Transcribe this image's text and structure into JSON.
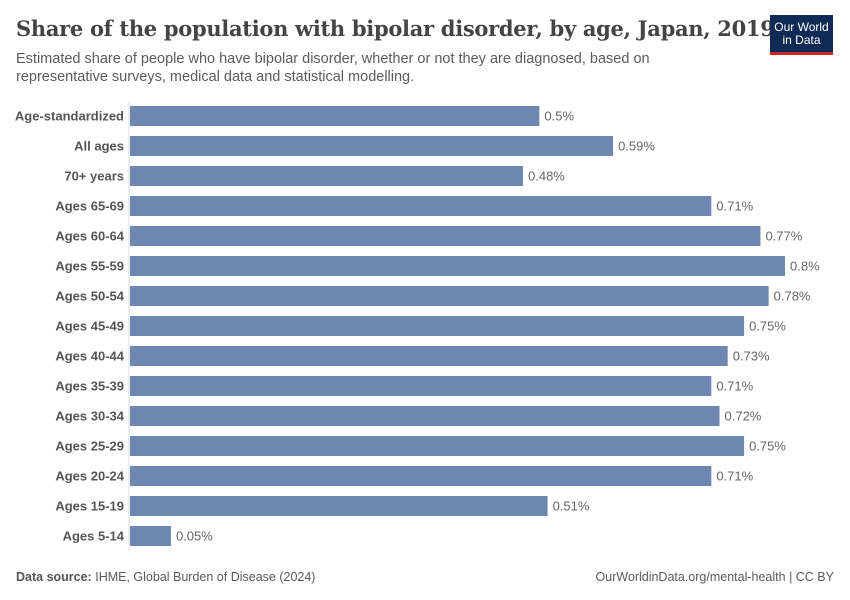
{
  "header": {
    "title": "Share of the population with bipolar disorder, by age, Japan, 2019",
    "subtitle": "Estimated share of people who have bipolar disorder, whether or not they are diagnosed, based on representative surveys, medical data and statistical modelling.",
    "logo": "Our World in Data",
    "logo_line1": "Our World",
    "logo_line2": "in Data"
  },
  "footer": {
    "source_label": "Data source:",
    "source": "IHME, Global Burden of Disease (2024)",
    "url": "OurWorldinData.org/mental-health | CC BY"
  },
  "chart_data": {
    "type": "bar",
    "orientation": "horizontal",
    "bar_color": "#6d87b1",
    "categories": [
      "Age-standardized",
      "All ages",
      "70+ years",
      "Ages 65-69",
      "Ages 60-64",
      "Ages 55-59",
      "Ages 50-54",
      "Ages 45-49",
      "Ages 40-44",
      "Ages 35-39",
      "Ages 30-34",
      "Ages 25-29",
      "Ages 20-24",
      "Ages 15-19",
      "Ages 5-14"
    ],
    "values": [
      0.5,
      0.59,
      0.48,
      0.71,
      0.77,
      0.8,
      0.78,
      0.75,
      0.73,
      0.71,
      0.72,
      0.75,
      0.71,
      0.51,
      0.05
    ],
    "labels": [
      "0.5%",
      "0.59%",
      "0.48%",
      "0.71%",
      "0.77%",
      "0.8%",
      "0.78%",
      "0.75%",
      "0.73%",
      "0.71%",
      "0.72%",
      "0.75%",
      "0.71%",
      "0.51%",
      "0.05%"
    ],
    "unit": "%"
  }
}
